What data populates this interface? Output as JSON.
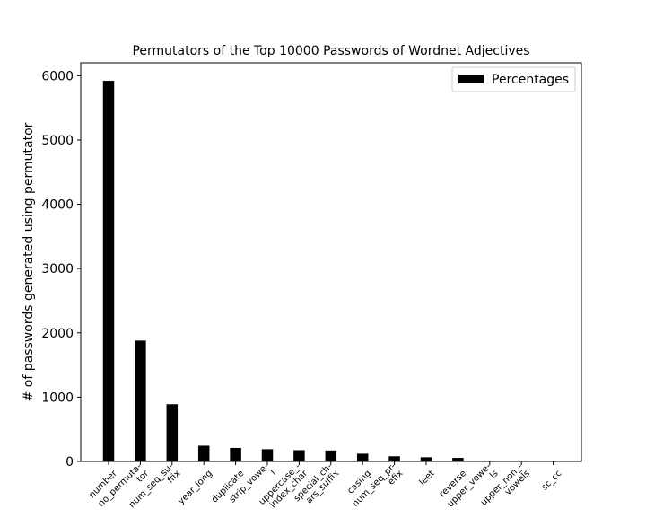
{
  "chart_data": {
    "type": "bar",
    "title": "Permutators of the Top 10000 Passwords of Wordnet Adjectives",
    "xlabel": "",
    "ylabel": "# of passwords generated using permutator",
    "ylim": [
      0,
      6200
    ],
    "yticks": [
      0,
      1000,
      2000,
      3000,
      4000,
      5000,
      6000
    ],
    "categories": [
      [
        "number"
      ],
      [
        "no_permuta-",
        "tor"
      ],
      [
        "num_seq_su-",
        "ffix"
      ],
      [
        "year_long"
      ],
      [
        "duplicate"
      ],
      [
        "strip_vowe-",
        "l"
      ],
      [
        "uppercase_-",
        "index_char"
      ],
      [
        "special_ch-",
        "ars_suffix"
      ],
      [
        "casing"
      ],
      [
        "num_seq_pr-",
        "efix"
      ],
      [
        "leet"
      ],
      [
        "reverse"
      ],
      [
        "upper_vowe-",
        "ls"
      ],
      [
        "upper_non_-",
        "vowels"
      ],
      [
        "sc_cc"
      ]
    ],
    "series": [
      {
        "name": "Percentages",
        "color": "#000000",
        "values": [
          5920,
          1880,
          890,
          245,
          210,
          190,
          175,
          170,
          120,
          80,
          65,
          55,
          12,
          8,
          5
        ]
      }
    ],
    "legend": "top-right",
    "grid": false
  }
}
